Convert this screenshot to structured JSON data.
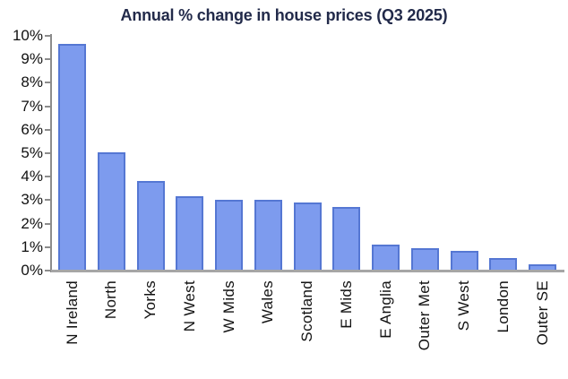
{
  "chart_data": {
    "type": "bar",
    "title": "Annual % change in house prices (Q3 2025)",
    "categories": [
      "N Ireland",
      "North",
      "Yorks",
      "N West",
      "W Mids",
      "Wales",
      "Scotland",
      "E Mids",
      "E Anglia",
      "Outer Met",
      "S West",
      "London",
      "Outer SE"
    ],
    "values": [
      9.65,
      5.05,
      3.8,
      3.15,
      3.0,
      3.0,
      2.9,
      2.7,
      1.1,
      0.95,
      0.85,
      0.55,
      0.25
    ],
    "xlabel": "",
    "ylabel": "",
    "ylim": [
      0,
      10
    ],
    "ytick_step": 1,
    "ytick_labels": [
      "0%",
      "1%",
      "2%",
      "3%",
      "4%",
      "5%",
      "6%",
      "7%",
      "8%",
      "9%",
      "10%"
    ],
    "x_label_rotation_deg": -90,
    "grid": false,
    "legend_position": "none",
    "colors": {
      "bar_fill": "#7d9bee",
      "bar_border": "#5577d3",
      "axis_line": "#8c8c8c",
      "baseline": "#a6a6a6",
      "title_text": "#222a4a",
      "tick_text": "#111111",
      "background": "#ffffff"
    }
  }
}
